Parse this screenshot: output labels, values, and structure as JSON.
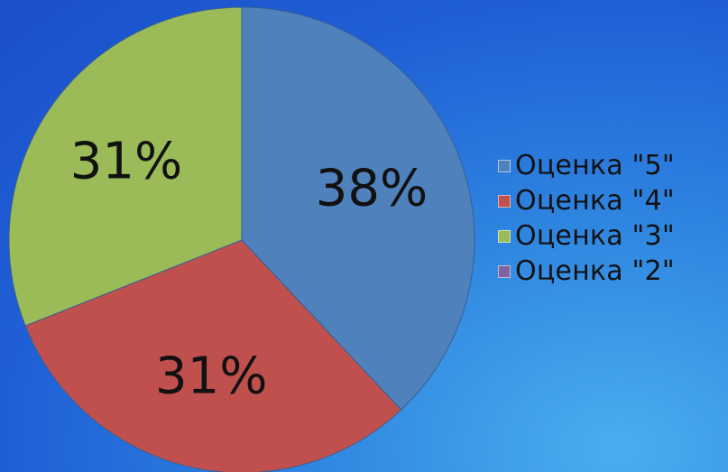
{
  "chart_data": {
    "type": "pie",
    "categories": [
      "Оценка \"5\"",
      "Оценка \"4\"",
      "Оценка \"3\"",
      "Оценка \"2\""
    ],
    "values": [
      38,
      31,
      31,
      0
    ],
    "data_labels": [
      "38%",
      "31%",
      "31%",
      ""
    ],
    "colors": [
      "#4f81bd",
      "#c0504d",
      "#9bbb59",
      "#8064a2"
    ],
    "legend_position": "right",
    "title": ""
  }
}
